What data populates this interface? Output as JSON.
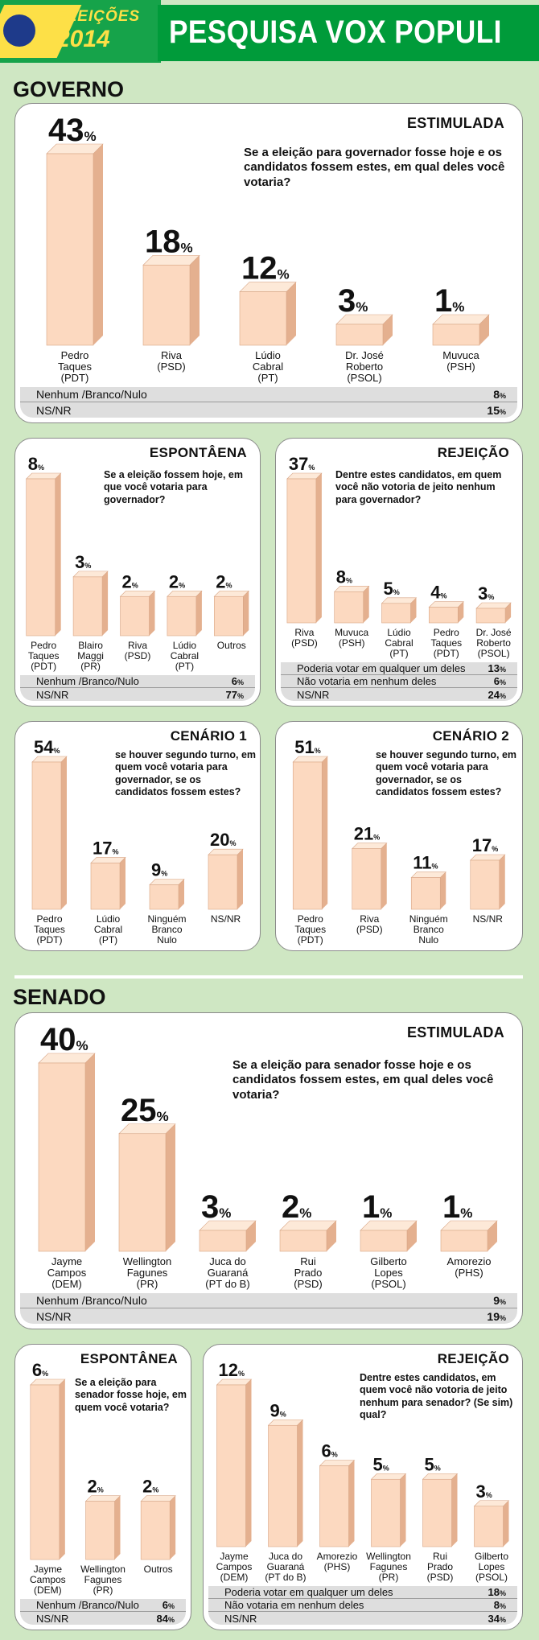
{
  "header": {
    "edition_label": "ELEIÇÕES",
    "year": "2014",
    "title": "PESQUISA VOX POPULI"
  },
  "sections": {
    "governo": "GOVERNO",
    "senado": "SENADO"
  },
  "colors": {
    "bar_front": "#fcd9c0",
    "bar_side": "#e4b08f",
    "bar_top": "#fde9d8",
    "green": "#009b3a",
    "yellow": "#fde047",
    "bg": "#cfe7c3"
  },
  "chart_data": [
    {
      "id": "gov_estimulada",
      "type": "bar",
      "title": "ESTIMULADA",
      "question": "Se a eleição para governador fosse hoje e os candidatos fossem estes, em qual deles você votaria?",
      "categories": [
        "Pedro Taques (PDT)",
        "Riva (PSD)",
        "Lúdio Cabral (PT)",
        "Dr. José Roberto (PSOL)",
        "Muvuca (PSH)"
      ],
      "labels": [
        [
          "Pedro",
          "Taques",
          "(PDT)"
        ],
        [
          "Riva",
          "(PSD)"
        ],
        [
          "Lúdio",
          "Cabral",
          "(PT)"
        ],
        [
          "Dr. José",
          "Roberto",
          "(PSOL)"
        ],
        [
          "Muvuca",
          "(PSH)"
        ]
      ],
      "values": [
        43,
        18,
        12,
        3,
        1
      ],
      "summary": [
        [
          "Nenhum /Branco/Nulo",
          "8"
        ],
        [
          "NS/NR",
          "15"
        ]
      ]
    },
    {
      "id": "gov_espontanea",
      "type": "bar",
      "title": "ESPONTÂENA",
      "question": "Se a eleição fossem hoje, em que você votaria para governador?",
      "categories": [
        "Pedro Taques (PDT)",
        "Blairo Maggi (PR)",
        "Riva (PSD)",
        "Lúdio Cabral (PT)",
        "Outros"
      ],
      "labels": [
        [
          "Pedro",
          "Taques",
          "(PDT)"
        ],
        [
          "Blairo",
          "Maggi",
          "(PR)"
        ],
        [
          "Riva",
          "(PSD)"
        ],
        [
          "Lúdio",
          "Cabral",
          "(PT)"
        ],
        [
          "Outros"
        ]
      ],
      "values": [
        8,
        3,
        2,
        2,
        2
      ],
      "summary": [
        [
          "Nenhum /Branco/Nulo",
          "6"
        ],
        [
          "NS/NR",
          "77"
        ]
      ]
    },
    {
      "id": "gov_rejeicao",
      "type": "bar",
      "title": "REJEIÇÃO",
      "question": "Dentre estes candidatos, em quem você não votoria de jeito nenhum para governador?",
      "categories": [
        "Riva (PSD)",
        "Muvuca (PSH)",
        "Lúdio Cabral (PT)",
        "Pedro Taques (PDT)",
        "Dr. José Roberto (PSOL)"
      ],
      "labels": [
        [
          "Riva",
          "(PSD)"
        ],
        [
          "Muvuca",
          "(PSH)"
        ],
        [
          "Lúdio",
          "Cabral",
          "(PT)"
        ],
        [
          "Pedro",
          "Taques",
          "(PDT)"
        ],
        [
          "Dr. José",
          "Roberto",
          "(PSOL)"
        ]
      ],
      "values": [
        37,
        8,
        5,
        4,
        3
      ],
      "summary": [
        [
          "Poderia votar em qualquer um deles",
          "13"
        ],
        [
          "Não votaria em nenhum deles",
          "6"
        ],
        [
          "NS/NR",
          "24"
        ]
      ]
    },
    {
      "id": "gov_cenario1",
      "type": "bar",
      "title": "CENÁRIO 1",
      "question": "se houver segundo turno, em quem você votaria para governador, se os candidatos fossem estes?",
      "categories": [
        "Pedro Taques (PDT)",
        "Lúdio Cabral (PT)",
        "Ninguém Branco Nulo",
        "NS/NR"
      ],
      "labels": [
        [
          "Pedro",
          "Taques",
          "(PDT)"
        ],
        [
          "Lúdio",
          "Cabral",
          "(PT)"
        ],
        [
          "Ninguém",
          "Branco",
          "Nulo"
        ],
        [
          "NS/NR"
        ]
      ],
      "values": [
        54,
        17,
        9,
        20
      ],
      "summary": []
    },
    {
      "id": "gov_cenario2",
      "type": "bar",
      "title": "CENÁRIO 2",
      "question": "se houver segundo turno, em quem você votaria para governador, se os candidatos fossem estes?",
      "categories": [
        "Pedro Taques (PDT)",
        "Riva (PSD)",
        "Ninguém Branco Nulo",
        "NS/NR"
      ],
      "labels": [
        [
          "Pedro",
          "Taques",
          "(PDT)"
        ],
        [
          "Riva",
          "(PSD)"
        ],
        [
          "Ninguém",
          "Branco",
          "Nulo"
        ],
        [
          "NS/NR"
        ]
      ],
      "values": [
        51,
        21,
        11,
        17
      ],
      "summary": []
    },
    {
      "id": "sen_estimulada",
      "type": "bar",
      "title": "ESTIMULADA",
      "question": "Se a eleição para senador fosse hoje e os candidatos fossem estes, em qual deles você votaria?",
      "categories": [
        "Jayme Campos (DEM)",
        "Wellington Fagunes (PR)",
        "Juca do Guaraná (PT do B)",
        "Rui Prado (PSD)",
        "Gilberto Lopes (PSOL)",
        "Amorezio (PHS)"
      ],
      "labels": [
        [
          "Jayme",
          "Campos",
          "(DEM)"
        ],
        [
          "Wellington",
          "Fagunes",
          "(PR)"
        ],
        [
          "Juca do",
          "Guaraná",
          "(PT do B)"
        ],
        [
          "Rui",
          "Prado",
          "(PSD)"
        ],
        [
          "Gilberto",
          "Lopes",
          "(PSOL)"
        ],
        [
          "Amorezio",
          "(PHS)"
        ]
      ],
      "values": [
        40,
        25,
        3,
        2,
        1,
        1
      ],
      "summary": [
        [
          "Nenhum /Branco/Nulo",
          "9"
        ],
        [
          "NS/NR",
          "19"
        ]
      ]
    },
    {
      "id": "sen_espontanea",
      "type": "bar",
      "title": "ESPONTÂNEA",
      "question": "Se a eleição para senador fosse hoje, em quem você votaria?",
      "categories": [
        "Jayme Campos (DEM)",
        "Wellington Fagunes (PR)",
        "Outros"
      ],
      "labels": [
        [
          "Jayme",
          "Campos",
          "(DEM)"
        ],
        [
          "Wellington",
          "Fagunes",
          "(PR)"
        ],
        [
          "Outros"
        ]
      ],
      "values": [
        6,
        2,
        2
      ],
      "summary": [
        [
          "Nenhum /Branco/Nulo",
          "6"
        ],
        [
          "NS/NR",
          "84"
        ]
      ]
    },
    {
      "id": "sen_rejeicao",
      "type": "bar",
      "title": "REJEIÇÃO",
      "question": "Dentre estes candidatos, em quem você não votoria de jeito nenhum para senador? (Se sim) qual?",
      "categories": [
        "Jayme Campos (DEM)",
        "Juca do Guaraná (PT do B)",
        "Amorezio (PHS)",
        "Wellington Fagunes (PR)",
        "Rui Prado (PSD)",
        "Gilberto Lopes (PSOL)"
      ],
      "labels": [
        [
          "Jayme",
          "Campos",
          "(DEM)"
        ],
        [
          "Juca do",
          "Guaraná",
          "(PT do B)"
        ],
        [
          "Amorezio",
          "(PHS)"
        ],
        [
          "Wellington",
          "Fagunes",
          "(PR)"
        ],
        [
          "Rui",
          "Prado",
          "(PSD)"
        ],
        [
          "Gilberto",
          "Lopes",
          "(PSOL)"
        ]
      ],
      "values": [
        12,
        9,
        6,
        5,
        5,
        3
      ],
      "summary": [
        [
          "Poderia votar em qualquer um deles",
          "18"
        ],
        [
          "Não votaria em nenhum deles",
          "8"
        ],
        [
          "NS/NR",
          "34"
        ]
      ]
    }
  ]
}
